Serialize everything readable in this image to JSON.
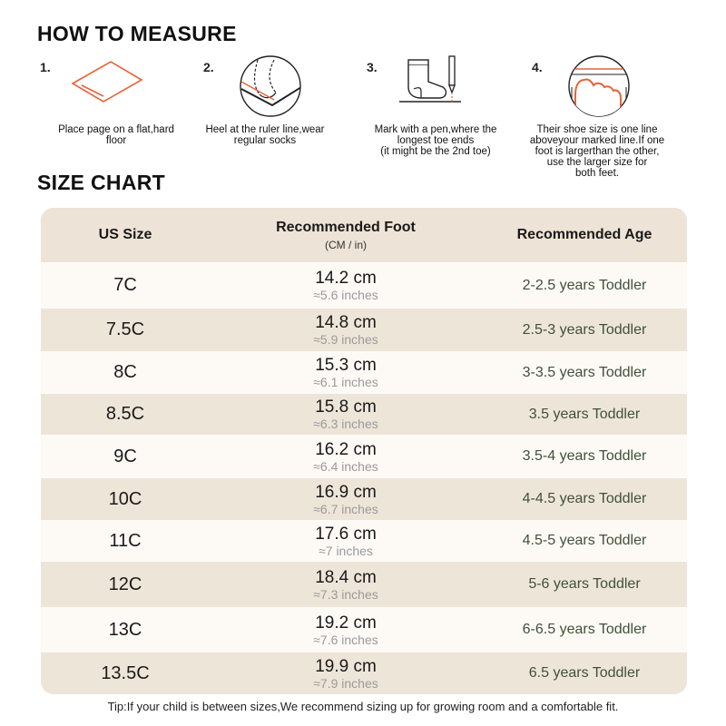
{
  "how_to_measure": {
    "title": "HOW TO MEASURE",
    "steps": [
      {
        "num": "1.",
        "text": "Place page on a flat,hard\nfloor",
        "icon": "paper-on-floor-icon"
      },
      {
        "num": "2.",
        "text": "Heel at the ruler line,wear\nregular socks",
        "icon": "heel-on-line-icon"
      },
      {
        "num": "3.",
        "text": "Mark with a pen,where the\nlongest toe ends\n(it might be the 2nd toe)",
        "icon": "sock-and-pen-icon"
      },
      {
        "num": "4.",
        "text": "Their shoe size is one line\naboveyour marked line.If one\nfoot is largerthan the other,\nuse the larger size for\nboth feet.",
        "icon": "toe-measure-icon"
      }
    ]
  },
  "size_chart": {
    "title": "SIZE CHART",
    "headers": {
      "us_size": "US Size",
      "foot": "Recommended Foot",
      "foot_unit": "(CM / in)",
      "age": "Recommended Age"
    },
    "rows": [
      {
        "size": "7C",
        "cm": "14.2 cm",
        "inch": "≈5.6 inches",
        "age": "2-2.5 years Toddler"
      },
      {
        "size": "7.5C",
        "cm": "14.8 cm",
        "inch": "≈5.9 inches",
        "age": "2.5-3 years Toddler"
      },
      {
        "size": "8C",
        "cm": "15.3 cm",
        "inch": "≈6.1 inches",
        "age": "3-3.5 years Toddler"
      },
      {
        "size": "8.5C",
        "cm": "15.8 cm",
        "inch": "≈6.3 inches",
        "age": "3.5 years Toddler"
      },
      {
        "size": "9C",
        "cm": "16.2 cm",
        "inch": "≈6.4 inches",
        "age": "3.5-4 years Toddler"
      },
      {
        "size": "10C",
        "cm": "16.9 cm",
        "inch": "≈6.7 inches",
        "age": "4-4.5 years Toddler"
      },
      {
        "size": "11C",
        "cm": "17.6 cm",
        "inch": "≈7 inches",
        "age": "4.5-5 years Toddler"
      },
      {
        "size": "12C",
        "cm": "18.4 cm",
        "inch": "≈7.3 inches",
        "age": "5-6 years Toddler"
      },
      {
        "size": "13C",
        "cm": "19.2 cm",
        "inch": "≈7.6 inches",
        "age": "6-6.5 years Toddler"
      },
      {
        "size": "13.5C",
        "cm": "19.9 cm",
        "inch": "≈7.9 inches",
        "age": "6.5 years Toddler"
      }
    ]
  },
  "tip": "Tip:If your child is between sizes,We recommend sizing up for growing room and a comfortable fit.",
  "colors": {
    "accent": "#e8623a",
    "header_bg": "#ede3d6",
    "row_light": "#fdfaf6",
    "row_dark": "#eee5d9",
    "age_text": "#3f5138"
  }
}
